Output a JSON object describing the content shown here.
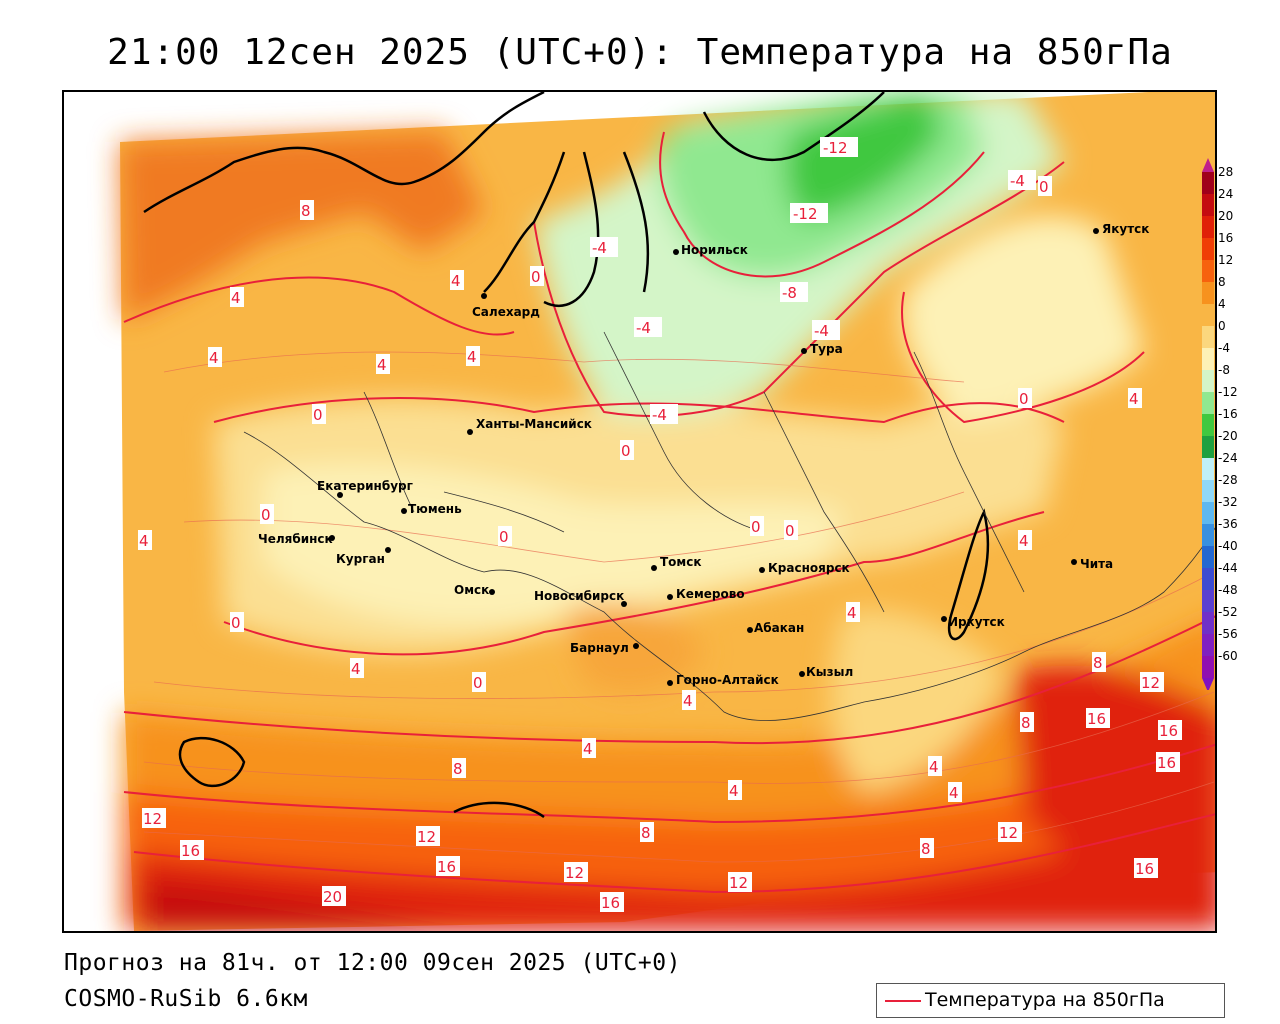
{
  "title": "21:00 12сен 2025 (UTC+0): Температура на 850гПа",
  "footer": {
    "forecast": "Прогноз на 81ч. от 12:00 09сен 2025 (UTC+0)",
    "model": "COSMO-RuSib 6.6км"
  },
  "legend": {
    "label": "Температура на 850гПа",
    "line_color": "#e8203a"
  },
  "colorbar": {
    "labels": [
      "28",
      "24",
      "20",
      "16",
      "12",
      "8",
      "4",
      "0",
      "-4",
      "-8",
      "-12",
      "-16",
      "-20",
      "-24",
      "-28",
      "-32",
      "-36",
      "-40",
      "-44",
      "-48",
      "-52",
      "-56",
      "-60"
    ],
    "colors": [
      "#a0001a",
      "#c40c10",
      "#e02008",
      "#f03e06",
      "#f7620e",
      "#f7921e",
      "#f9b645",
      "#fbd77e",
      "#fdf1b6",
      "#d4f5c8",
      "#90e890",
      "#40c840",
      "#1ea040",
      "#c0f0f8",
      "#90d8f8",
      "#5eb8f0",
      "#3890e0",
      "#2468d0",
      "#3c4cd0",
      "#5a40d0",
      "#7030c8",
      "#8020c0",
      "#9010b0"
    ],
    "top_color": "#c0208a",
    "bottom_color": "#8010c0"
  },
  "cities": [
    {
      "name": "Якутск"
    },
    {
      "name": "Норильск"
    },
    {
      "name": "Салехард"
    },
    {
      "name": "Тура"
    },
    {
      "name": "Ханты-Мансийск"
    },
    {
      "name": "Екатеринбург"
    },
    {
      "name": "Тюмень"
    },
    {
      "name": "Челябинск"
    },
    {
      "name": "Курган"
    },
    {
      "name": "Омск"
    },
    {
      "name": "Новосибирск"
    },
    {
      "name": "Томск"
    },
    {
      "name": "Кемерово"
    },
    {
      "name": "Красноярск"
    },
    {
      "name": "Барнаул"
    },
    {
      "name": "Абакан"
    },
    {
      "name": "Горно-Алтайск"
    },
    {
      "name": "Кызыл"
    },
    {
      "name": "Иркутск"
    },
    {
      "name": "Чита"
    }
  ],
  "isotherm_labels": [
    "-12",
    "-4",
    "0",
    "-12",
    "-4",
    "-8",
    "-4",
    "-4",
    "8",
    "4",
    "4",
    "4",
    "4",
    "0",
    "4",
    "0",
    "-4",
    "0",
    "0",
    "4",
    "0",
    "0",
    "0",
    "0",
    "4",
    "4",
    "0",
    "4",
    "0",
    "4",
    "4",
    "8",
    "12",
    "16",
    "4",
    "8",
    "16",
    "16",
    "12",
    "4",
    "4",
    "4",
    "8",
    "8",
    "12",
    "16",
    "12",
    "16",
    "8",
    "12",
    "12",
    "16",
    "20",
    "16"
  ]
}
